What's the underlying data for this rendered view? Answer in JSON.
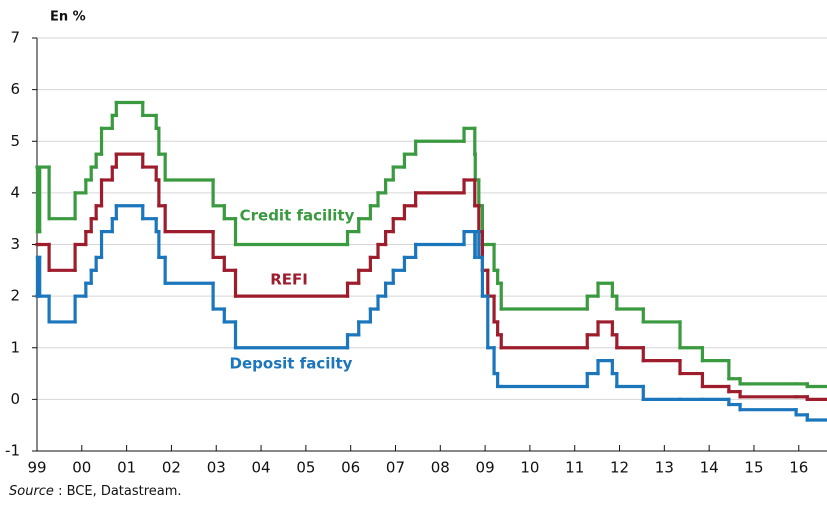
{
  "chart_data": {
    "type": "step",
    "title": "En %",
    "source": {
      "label": "Source",
      "text": " : BCE, Datastream."
    },
    "x": [
      1999.0,
      1999.01,
      1999.06,
      1999.27,
      1999.85,
      2000.09,
      2000.21,
      2000.32,
      2000.44,
      2000.68,
      2000.77,
      2001.36,
      2001.66,
      2001.72,
      2001.86,
      2002.93,
      2003.18,
      2003.43,
      2005.93,
      2006.18,
      2006.44,
      2006.61,
      2006.78,
      2006.95,
      2007.2,
      2007.45,
      2008.53,
      2008.77,
      2008.78,
      2008.86,
      2008.94,
      2009.06,
      2009.2,
      2009.28,
      2009.36,
      2011.28,
      2011.52,
      2011.84,
      2011.94,
      2012.53,
      2013.35,
      2013.85,
      2014.44,
      2014.69,
      2015.94,
      2016.19,
      2016.63
    ],
    "series": [
      {
        "name": "Credit facility",
        "color": "#3a9a3f",
        "values": [
          4.5,
          3.25,
          4.5,
          3.5,
          4.0,
          4.25,
          4.5,
          4.75,
          5.25,
          5.5,
          5.75,
          5.5,
          5.25,
          4.75,
          4.25,
          3.75,
          3.5,
          3.0,
          3.25,
          3.5,
          3.75,
          4.0,
          4.25,
          4.5,
          4.75,
          5.0,
          5.25,
          4.75,
          4.25,
          3.75,
          3.0,
          3.0,
          2.5,
          2.25,
          1.75,
          2.0,
          2.25,
          2.0,
          1.75,
          1.5,
          1.0,
          0.75,
          0.4,
          0.3,
          0.3,
          0.25,
          0.25
        ]
      },
      {
        "name": "REFI",
        "color": "#9d1d2c",
        "values": [
          3.0,
          3.0,
          3.0,
          2.5,
          3.0,
          3.25,
          3.5,
          3.75,
          4.25,
          4.5,
          4.75,
          4.5,
          4.25,
          3.75,
          3.25,
          2.75,
          2.5,
          2.0,
          2.25,
          2.5,
          2.75,
          3.0,
          3.25,
          3.5,
          3.75,
          4.0,
          4.25,
          3.75,
          3.75,
          3.25,
          2.5,
          2.0,
          1.5,
          1.25,
          1.0,
          1.25,
          1.5,
          1.25,
          1.0,
          0.75,
          0.5,
          0.25,
          0.15,
          0.05,
          0.05,
          0.0,
          0.0
        ]
      },
      {
        "name": "Deposit facilty",
        "color": "#1b76bc",
        "values": [
          2.0,
          2.75,
          2.0,
          1.5,
          2.0,
          2.25,
          2.5,
          2.75,
          3.25,
          3.5,
          3.75,
          3.5,
          3.25,
          2.75,
          2.25,
          1.75,
          1.5,
          1.0,
          1.25,
          1.5,
          1.75,
          2.0,
          2.25,
          2.5,
          2.75,
          3.0,
          3.25,
          2.75,
          3.25,
          2.75,
          2.0,
          1.0,
          0.5,
          0.25,
          0.25,
          0.5,
          0.75,
          0.5,
          0.25,
          0.0,
          0.0,
          0.0,
          -0.1,
          -0.2,
          -0.3,
          -0.4,
          -0.4
        ]
      }
    ],
    "xlim": [
      1999,
      2016.63
    ],
    "xticks": [
      {
        "value": 1999,
        "label": "99"
      },
      {
        "value": 2000,
        "label": "00"
      },
      {
        "value": 2001,
        "label": "01"
      },
      {
        "value": 2002,
        "label": "02"
      },
      {
        "value": 2003,
        "label": "03"
      },
      {
        "value": 2004,
        "label": "04"
      },
      {
        "value": 2005,
        "label": "05"
      },
      {
        "value": 2006,
        "label": "06"
      },
      {
        "value": 2007,
        "label": "07"
      },
      {
        "value": 2008,
        "label": "08"
      },
      {
        "value": 2009,
        "label": "09"
      },
      {
        "value": 2010,
        "label": "10"
      },
      {
        "value": 2011,
        "label": "11"
      },
      {
        "value": 2012,
        "label": "12"
      },
      {
        "value": 2013,
        "label": "13"
      },
      {
        "value": 2014,
        "label": "14"
      },
      {
        "value": 2015,
        "label": "15"
      },
      {
        "value": 2016,
        "label": "16"
      }
    ],
    "ylim": [
      -1,
      7
    ],
    "yticks": [
      -1,
      0,
      1,
      2,
      3,
      4,
      5,
      6,
      7
    ],
    "grid": true
  }
}
